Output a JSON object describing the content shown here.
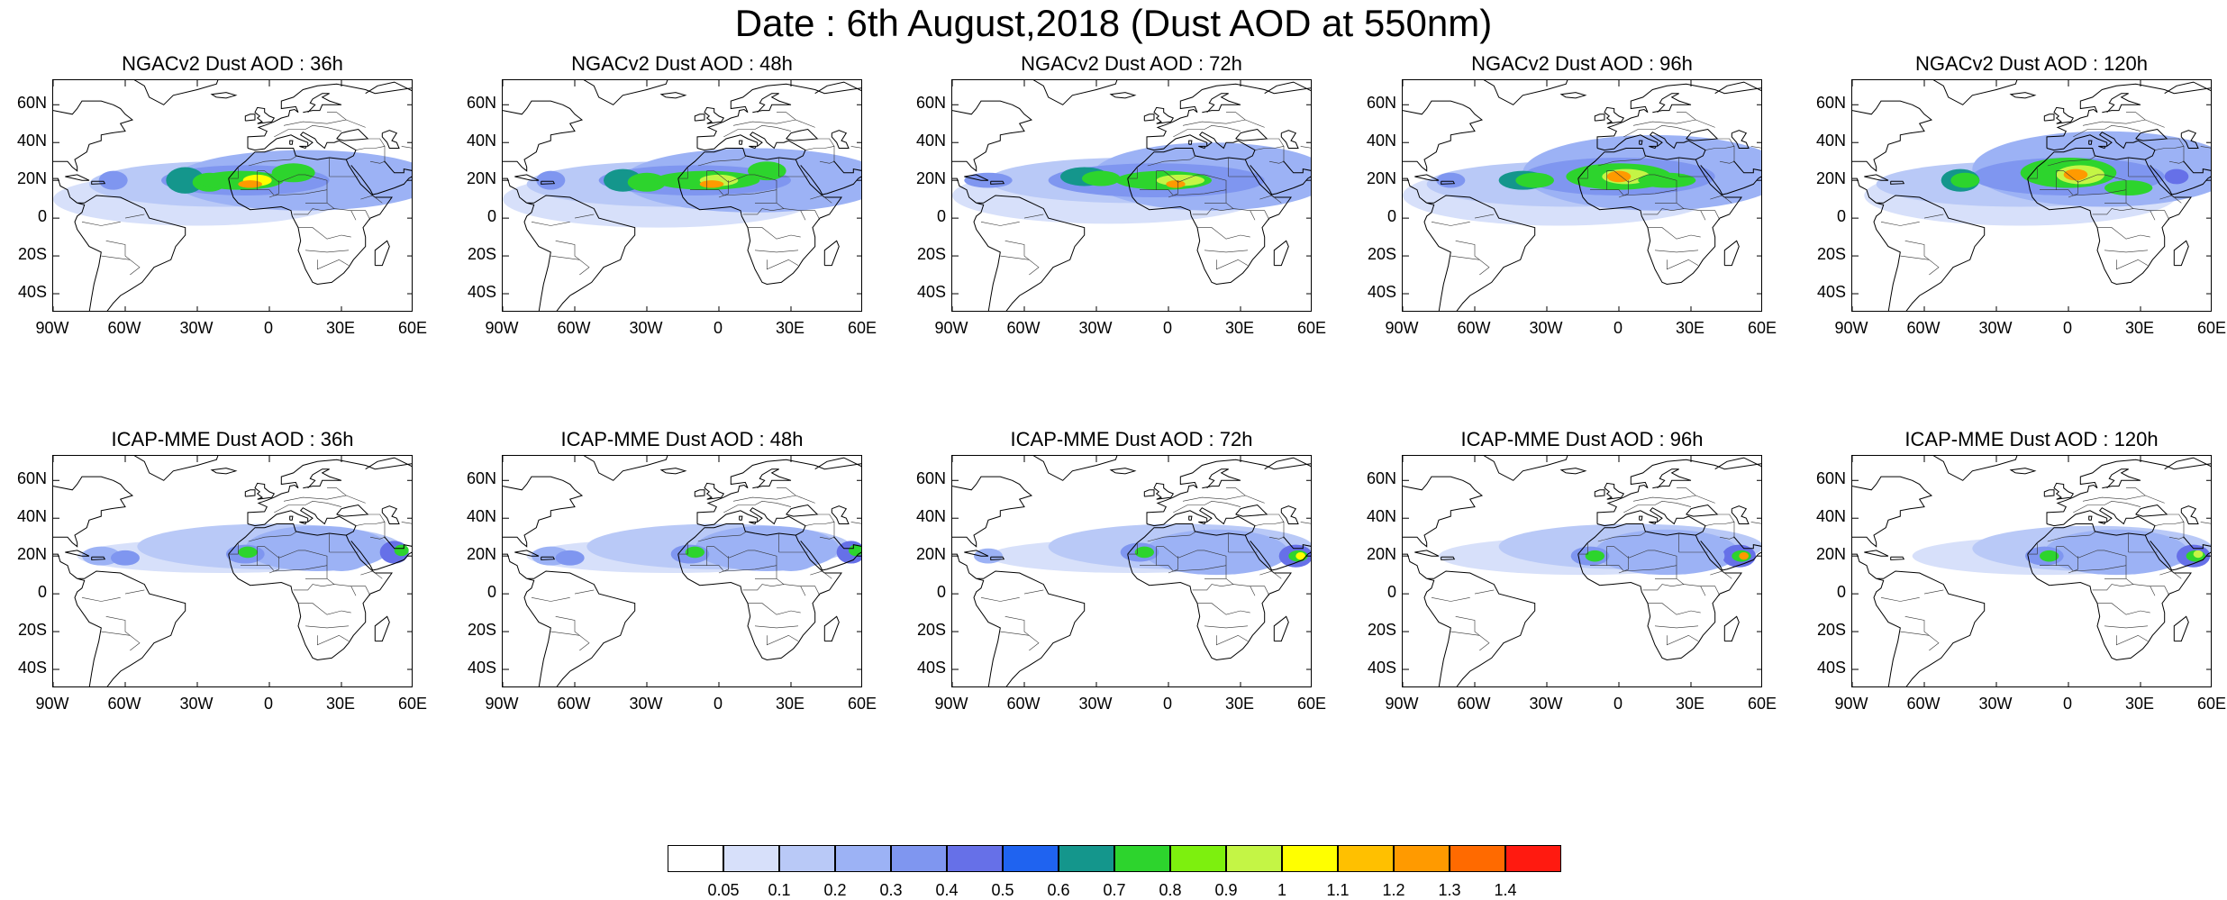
{
  "title": "Date : 6th August,2018 (Dust AOD at 550nm)",
  "panels": [
    {
      "title": "NGACv2 Dust AOD : 36h",
      "model": "NGACv2",
      "lead_hours": 36
    },
    {
      "title": "NGACv2 Dust AOD : 48h",
      "model": "NGACv2",
      "lead_hours": 48
    },
    {
      "title": "NGACv2 Dust AOD : 72h",
      "model": "NGACv2",
      "lead_hours": 72
    },
    {
      "title": "NGACv2 Dust AOD : 96h",
      "model": "NGACv2",
      "lead_hours": 96
    },
    {
      "title": "NGACv2 Dust AOD : 120h",
      "model": "NGACv2",
      "lead_hours": 120
    },
    {
      "title": "ICAP-MME Dust AOD : 36h",
      "model": "ICAP-MME",
      "lead_hours": 36
    },
    {
      "title": "ICAP-MME Dust AOD : 48h",
      "model": "ICAP-MME",
      "lead_hours": 48
    },
    {
      "title": "ICAP-MME Dust AOD : 72h",
      "model": "ICAP-MME",
      "lead_hours": 72
    },
    {
      "title": "ICAP-MME Dust AOD : 96h",
      "model": "ICAP-MME",
      "lead_hours": 96
    },
    {
      "title": "ICAP-MME Dust AOD : 120h",
      "model": "ICAP-MME",
      "lead_hours": 120
    }
  ],
  "lat_labels": [
    "60N",
    "40N",
    "20N",
    "0",
    "20S",
    "40S"
  ],
  "lon_labels": [
    "90W",
    "60W",
    "30W",
    "0",
    "30E",
    "60E"
  ],
  "colorbar": {
    "labels": [
      "0.05",
      "0.1",
      "0.2",
      "0.3",
      "0.4",
      "0.5",
      "0.6",
      "0.7",
      "0.8",
      "0.9",
      "1",
      "1.1",
      "1.2",
      "1.3",
      "1.4"
    ],
    "colors": [
      "#ffffff",
      "#d7e0fa",
      "#b9c9f7",
      "#9cb2f5",
      "#7f96f0",
      "#6670e8",
      "#1f63f0",
      "#14968c",
      "#2dd42d",
      "#7df00e",
      "#c4f545",
      "#ffff00",
      "#ffc000",
      "#ff9a00",
      "#ff6a00",
      "#ff1a10"
    ]
  }
}
